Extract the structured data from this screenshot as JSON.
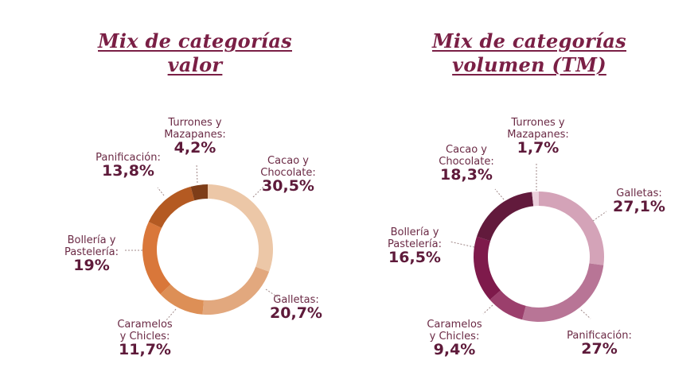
{
  "chart_data": [
    {
      "type": "pie",
      "variant": "donut",
      "title": [
        "Mix de categorías",
        "valor"
      ],
      "start": "12 o'clock",
      "direction": "clockwise",
      "slices": [
        {
          "label": "Cacao y Chocolate",
          "name_lines": [
            "Cacao y",
            "Chocolate:"
          ],
          "value": 30.5,
          "display": "30,5%",
          "color": "#ecc7a7"
        },
        {
          "label": "Galletas",
          "name_lines": [
            "Galletas:"
          ],
          "value": 20.7,
          "display": "20,7%",
          "color": "#e2a87e"
        },
        {
          "label": "Caramelos y Chicles",
          "name_lines": [
            "Caramelos",
            "y Chicles:"
          ],
          "value": 11.7,
          "display": "11,7%",
          "color": "#dd8f56"
        },
        {
          "label": "Bollería y Pastelería",
          "name_lines": [
            "Bollería y",
            "Pastelería:"
          ],
          "value": 19,
          "display": "19%",
          "color": "#d9773a"
        },
        {
          "label": "Panificación",
          "name_lines": [
            "Panificación:"
          ],
          "value": 13.8,
          "display": "13,8%",
          "color": "#b45a22"
        },
        {
          "label": "Turrones y Mazapanes",
          "name_lines": [
            "Turrones y",
            "Mazapanes:"
          ],
          "value": 4.2,
          "display": "4,2%",
          "color": "#7e3d18"
        }
      ]
    },
    {
      "type": "pie",
      "variant": "donut",
      "title": [
        "Mix de categorías",
        "volumen (TM)"
      ],
      "start": "12 o'clock",
      "direction": "clockwise",
      "slices": [
        {
          "label": "Galletas",
          "name_lines": [
            "Galletas:"
          ],
          "value": 27.1,
          "display": "27,1%",
          "color": "#d4a3b8"
        },
        {
          "label": "Panificación",
          "name_lines": [
            "Panificación:"
          ],
          "value": 27,
          "display": "27%",
          "color": "#b87596"
        },
        {
          "label": "Caramelos y Chicles",
          "name_lines": [
            "Caramelos",
            "y Chicles:"
          ],
          "value": 9.4,
          "display": "9,4%",
          "color": "#9b3f6c"
        },
        {
          "label": "Bollería y Pastelería",
          "name_lines": [
            "Bollería y",
            "Pastelería:"
          ],
          "value": 16.5,
          "display": "16,5%",
          "color": "#7e1a4b"
        },
        {
          "label": "Cacao y Chocolate",
          "name_lines": [
            "Cacao y",
            "Chocolate:"
          ],
          "value": 18.3,
          "display": "18,3%",
          "color": "#621a3c"
        },
        {
          "label": "Turrones y Mazapanes",
          "name_lines": [
            "Turrones y",
            "Mazapanes:"
          ],
          "value": 1.7,
          "display": "1,7%",
          "color": "#ebd0dc"
        }
      ]
    }
  ]
}
